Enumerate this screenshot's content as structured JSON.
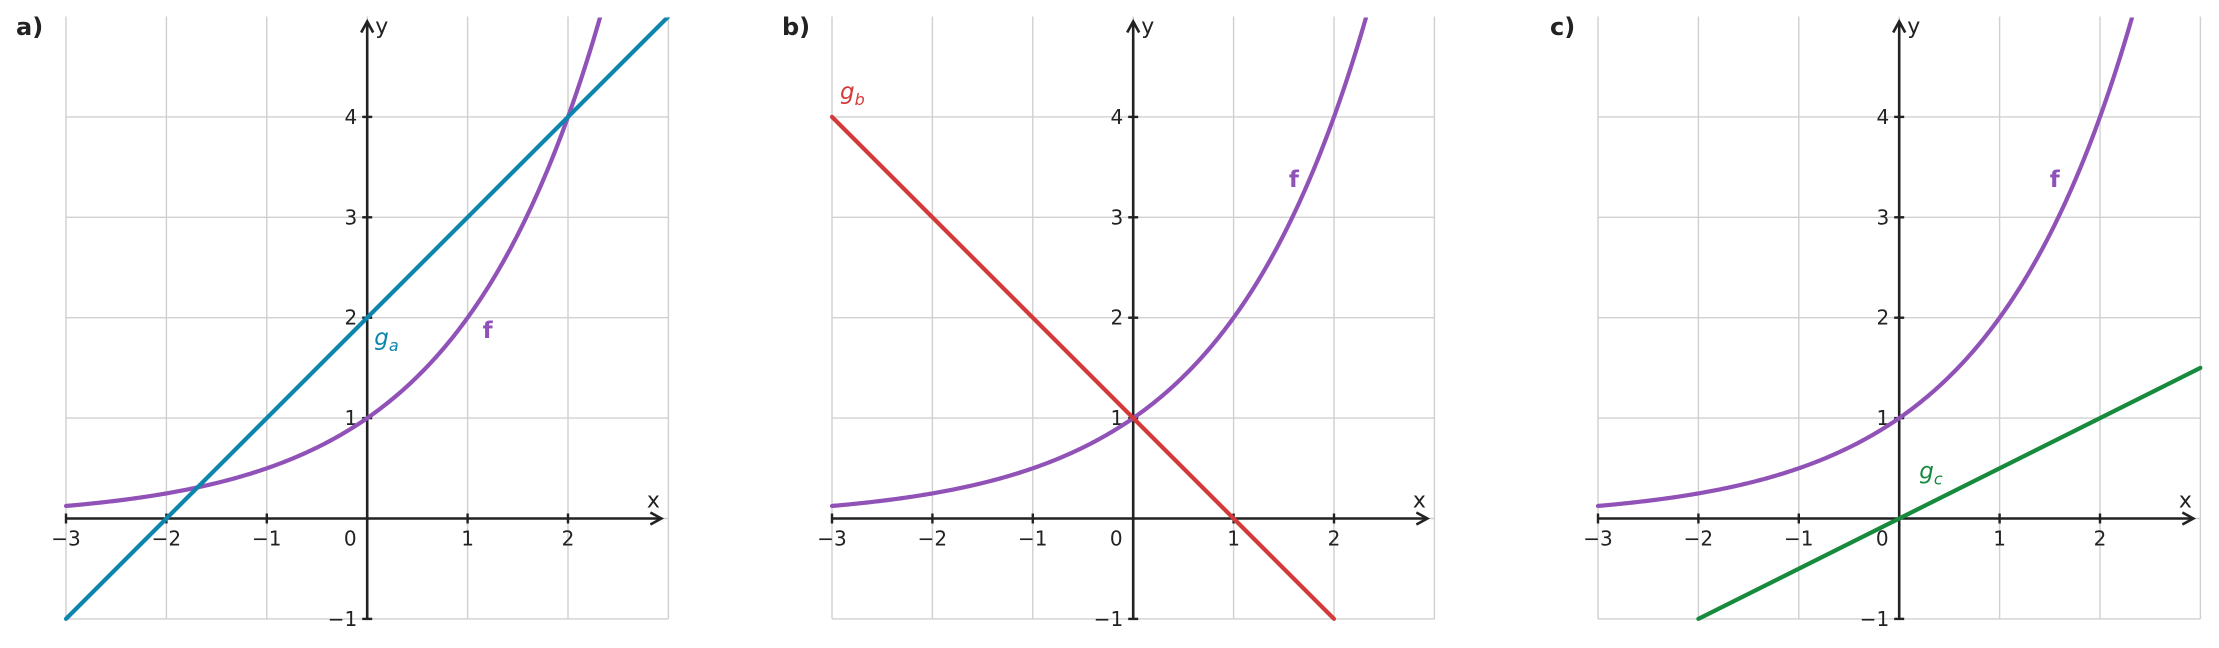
{
  "colors": {
    "f": "#9152b8",
    "ga": "#0c86ac",
    "gb": "#d43a3a",
    "gc": "#168a3e"
  },
  "chart_data": [
    {
      "panel_label": "a)",
      "type": "line",
      "xlabel": "x",
      "ylabel": "y",
      "xlim": [
        -3,
        3
      ],
      "ylim": [
        -1,
        5
      ],
      "xticks": [
        -3,
        -2,
        -1,
        0,
        1,
        2
      ],
      "xticklabels": [
        "−3",
        "−2",
        "−1",
        "0",
        "1",
        "2"
      ],
      "yticks": [
        -1,
        1,
        2,
        3,
        4
      ],
      "yticklabels": [
        "−1",
        "1",
        "2",
        "3",
        "4"
      ],
      "grid": true,
      "series": [
        {
          "name": "f",
          "label_style": "bold",
          "color_key": "f",
          "kind": "exp2",
          "x": [
            -3,
            -2,
            -1,
            0,
            1,
            2,
            2.32
          ],
          "y": [
            0.125,
            0.25,
            0.5,
            1,
            2,
            4,
            5
          ]
        },
        {
          "name": "g",
          "name_sub": "a",
          "label_style": "italic",
          "color_key": "ga",
          "kind": "line",
          "x": [
            -3,
            3
          ],
          "y": [
            -1,
            5
          ]
        }
      ],
      "annotations": [
        {
          "series": "f",
          "x": 1.15,
          "y": 1.8
        },
        {
          "series": "g",
          "x": 0.07,
          "y": 1.73
        }
      ]
    },
    {
      "panel_label": "b)",
      "type": "line",
      "xlabel": "x",
      "ylabel": "y",
      "xlim": [
        -3,
        3
      ],
      "ylim": [
        -1,
        5
      ],
      "xticks": [
        -3,
        -2,
        -1,
        0,
        1,
        2
      ],
      "xticklabels": [
        "−3",
        "−2",
        "−1",
        "0",
        "1",
        "2"
      ],
      "yticks": [
        -1,
        1,
        2,
        3,
        4
      ],
      "yticklabels": [
        "−1",
        "1",
        "2",
        "3",
        "4"
      ],
      "grid": true,
      "series": [
        {
          "name": "f",
          "label_style": "bold",
          "color_key": "f",
          "kind": "exp2",
          "x": [
            -3,
            -2,
            -1,
            0,
            1,
            2,
            2.32
          ],
          "y": [
            0.125,
            0.25,
            0.5,
            1,
            2,
            4,
            5
          ]
        },
        {
          "name": "g",
          "name_sub": "b",
          "label_style": "italic",
          "color_key": "gb",
          "kind": "line",
          "x": [
            -3,
            2
          ],
          "y": [
            4,
            -1
          ]
        }
      ],
      "annotations": [
        {
          "series": "f",
          "x": 1.55,
          "y": 3.3
        },
        {
          "series": "g",
          "x": -2.92,
          "y": 4.18
        }
      ]
    },
    {
      "panel_label": "c)",
      "type": "line",
      "xlabel": "x",
      "ylabel": "y",
      "xlim": [
        -3,
        3
      ],
      "ylim": [
        -1,
        5
      ],
      "xticks": [
        -3,
        -2,
        -1,
        0,
        1,
        2
      ],
      "xticklabels": [
        "−3",
        "−2",
        "−1",
        "0",
        "1",
        "2"
      ],
      "yticks": [
        -1,
        1,
        2,
        3,
        4
      ],
      "yticklabels": [
        "−1",
        "1",
        "2",
        "3",
        "4"
      ],
      "grid": true,
      "series": [
        {
          "name": "f",
          "label_style": "bold",
          "color_key": "f",
          "kind": "exp2",
          "x": [
            -3,
            -2,
            -1,
            0,
            1,
            2,
            2.32
          ],
          "y": [
            0.125,
            0.25,
            0.5,
            1,
            2,
            4,
            5
          ]
        },
        {
          "name": "g",
          "name_sub": "c",
          "label_style": "italic",
          "color_key": "gc",
          "kind": "line",
          "x": [
            -2,
            3
          ],
          "y": [
            -1,
            1.5
          ]
        }
      ],
      "annotations": [
        {
          "series": "f",
          "x": 1.5,
          "y": 3.3
        },
        {
          "series": "g",
          "x": 0.2,
          "y": 0.4
        }
      ]
    }
  ]
}
